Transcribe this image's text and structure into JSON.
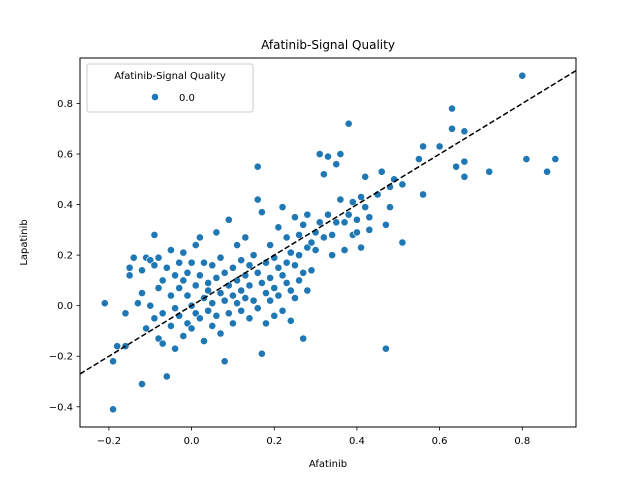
{
  "chart_data": {
    "type": "scatter",
    "title": "Afatinib-Signal Quality",
    "xlabel": "Afatinib",
    "ylabel": "Lapatinib",
    "xlim": [
      -0.27,
      0.93
    ],
    "ylim": [
      -0.48,
      0.98
    ],
    "xticks": [
      -0.2,
      0.0,
      0.2,
      0.4,
      0.6,
      0.8
    ],
    "yticks": [
      -0.4,
      -0.2,
      0.0,
      0.2,
      0.4,
      0.6,
      0.8
    ],
    "grid": false,
    "legend": {
      "title": "Afatinib-Signal Quality",
      "placement": "top-left",
      "entries": [
        "0.0"
      ]
    },
    "reference_line": {
      "style": "dashed",
      "color": "#000000",
      "slope": 1,
      "intercept": 0
    },
    "series": [
      {
        "name": "0.0",
        "color": "#1f77b4",
        "points": [
          [
            -0.21,
            0.01
          ],
          [
            -0.19,
            -0.41
          ],
          [
            -0.19,
            -0.22
          ],
          [
            -0.18,
            -0.16
          ],
          [
            -0.16,
            -0.16
          ],
          [
            -0.16,
            -0.03
          ],
          [
            -0.15,
            0.15
          ],
          [
            -0.15,
            0.12
          ],
          [
            -0.14,
            0.19
          ],
          [
            -0.13,
            0.01
          ],
          [
            -0.12,
            -0.31
          ],
          [
            -0.12,
            0.14
          ],
          [
            -0.12,
            0.05
          ],
          [
            -0.11,
            0.19
          ],
          [
            -0.11,
            -0.09
          ],
          [
            -0.1,
            0.18
          ],
          [
            -0.1,
            0.0
          ],
          [
            -0.09,
            0.28
          ],
          [
            -0.09,
            0.16
          ],
          [
            -0.09,
            -0.05
          ],
          [
            -0.08,
            0.19
          ],
          [
            -0.08,
            0.07
          ],
          [
            -0.08,
            -0.13
          ],
          [
            -0.07,
            -0.15
          ],
          [
            -0.07,
            0.1
          ],
          [
            -0.07,
            -0.03
          ],
          [
            -0.06,
            0.15
          ],
          [
            -0.06,
            -0.28
          ],
          [
            -0.05,
            0.04
          ],
          [
            -0.05,
            -0.08
          ],
          [
            -0.05,
            0.22
          ],
          [
            -0.04,
            0.12
          ],
          [
            -0.04,
            -0.01
          ],
          [
            -0.04,
            -0.17
          ],
          [
            -0.03,
            0.17
          ],
          [
            -0.03,
            0.07
          ],
          [
            -0.03,
            -0.04
          ],
          [
            -0.02,
            0.21
          ],
          [
            -0.02,
            0.1
          ],
          [
            -0.02,
            -0.12
          ],
          [
            -0.01,
            0.04
          ],
          [
            -0.01,
            -0.07
          ],
          [
            -0.01,
            0.13
          ],
          [
            0.0,
            0.17
          ],
          [
            0.0,
            0.0
          ],
          [
            0.0,
            -0.09
          ],
          [
            0.01,
            0.08
          ],
          [
            0.01,
            -0.03
          ],
          [
            0.01,
            0.24
          ],
          [
            0.02,
            0.12
          ],
          [
            0.02,
            -0.05
          ],
          [
            0.02,
            0.27
          ],
          [
            0.03,
            0.03
          ],
          [
            0.03,
            -0.14
          ],
          [
            0.03,
            0.17
          ],
          [
            0.04,
            0.09
          ],
          [
            0.04,
            -0.02
          ],
          [
            0.04,
            0.06
          ],
          [
            0.05,
            0.16
          ],
          [
            0.05,
            -0.08
          ],
          [
            0.05,
            0.01
          ],
          [
            0.06,
            0.29
          ],
          [
            0.06,
            0.11
          ],
          [
            0.06,
            -0.04
          ],
          [
            0.07,
            0.05
          ],
          [
            0.07,
            -0.11
          ],
          [
            0.07,
            0.19
          ],
          [
            0.08,
            0.13
          ],
          [
            0.08,
            -0.22
          ],
          [
            0.08,
            0.02
          ],
          [
            0.09,
            0.34
          ],
          [
            0.09,
            0.08
          ],
          [
            0.09,
            -0.03
          ],
          [
            0.1,
            0.15
          ],
          [
            0.1,
            0.04
          ],
          [
            0.1,
            -0.07
          ],
          [
            0.11,
            0.24
          ],
          [
            0.11,
            0.1
          ],
          [
            0.11,
            0.01
          ],
          [
            0.12,
            0.18
          ],
          [
            0.12,
            0.06
          ],
          [
            0.12,
            -0.02
          ],
          [
            0.13,
            0.27
          ],
          [
            0.13,
            0.12
          ],
          [
            0.13,
            0.03
          ],
          [
            0.14,
            0.16
          ],
          [
            0.14,
            -0.05
          ],
          [
            0.14,
            0.08
          ],
          [
            0.15,
            0.2
          ],
          [
            0.15,
            0.02
          ],
          [
            0.16,
            0.55
          ],
          [
            0.16,
            0.13
          ],
          [
            0.16,
            -0.01
          ],
          [
            0.16,
            0.42
          ],
          [
            0.17,
            -0.19
          ],
          [
            0.17,
            0.37
          ],
          [
            0.17,
            0.09
          ],
          [
            0.18,
            0.17
          ],
          [
            0.18,
            0.05
          ],
          [
            0.18,
            -0.07
          ],
          [
            0.19,
            0.24
          ],
          [
            0.19,
            0.11
          ],
          [
            0.19,
            0.02
          ],
          [
            0.2,
            0.19
          ],
          [
            0.2,
            0.07
          ],
          [
            0.2,
            -0.04
          ],
          [
            0.21,
            0.31
          ],
          [
            0.21,
            0.15
          ],
          [
            0.21,
            0.04
          ],
          [
            0.22,
            0.39
          ],
          [
            0.22,
            0.12
          ],
          [
            0.22,
            -0.02
          ],
          [
            0.23,
            0.27
          ],
          [
            0.23,
            0.17
          ],
          [
            0.23,
            0.09
          ],
          [
            0.24,
            0.21
          ],
          [
            0.24,
            0.06
          ],
          [
            0.24,
            -0.06
          ],
          [
            0.25,
            0.35
          ],
          [
            0.25,
            0.16
          ],
          [
            0.25,
            0.03
          ],
          [
            0.26,
            0.28
          ],
          [
            0.26,
            0.1
          ],
          [
            0.26,
            0.2
          ],
          [
            0.27,
            0.13
          ],
          [
            0.27,
            0.32
          ],
          [
            0.27,
            -0.13
          ],
          [
            0.28,
            0.23
          ],
          [
            0.28,
            0.06
          ],
          [
            0.28,
            0.36
          ],
          [
            0.29,
            0.25
          ],
          [
            0.29,
            0.14
          ],
          [
            0.3,
            0.29
          ],
          [
            0.3,
            0.22
          ],
          [
            0.31,
            0.6
          ],
          [
            0.31,
            0.33
          ],
          [
            0.32,
            0.52
          ],
          [
            0.32,
            0.27
          ],
          [
            0.33,
            0.59
          ],
          [
            0.33,
            0.36
          ],
          [
            0.34,
            0.28
          ],
          [
            0.34,
            0.2
          ],
          [
            0.35,
            0.56
          ],
          [
            0.35,
            0.33
          ],
          [
            0.36,
            0.6
          ],
          [
            0.36,
            0.42
          ],
          [
            0.37,
            0.33
          ],
          [
            0.37,
            0.22
          ],
          [
            0.38,
            0.72
          ],
          [
            0.38,
            0.36
          ],
          [
            0.39,
            0.41
          ],
          [
            0.39,
            0.28
          ],
          [
            0.4,
            0.34
          ],
          [
            0.4,
            0.29
          ],
          [
            0.41,
            0.43
          ],
          [
            0.41,
            0.23
          ],
          [
            0.42,
            0.39
          ],
          [
            0.42,
            0.51
          ],
          [
            0.43,
            0.35
          ],
          [
            0.43,
            0.3
          ],
          [
            0.45,
            0.44
          ],
          [
            0.46,
            0.53
          ],
          [
            0.47,
            0.32
          ],
          [
            0.47,
            -0.17
          ],
          [
            0.48,
            0.47
          ],
          [
            0.48,
            0.39
          ],
          [
            0.49,
            0.5
          ],
          [
            0.51,
            0.48
          ],
          [
            0.51,
            0.25
          ],
          [
            0.55,
            0.58
          ],
          [
            0.56,
            0.63
          ],
          [
            0.56,
            0.44
          ],
          [
            0.6,
            0.63
          ],
          [
            0.63,
            0.78
          ],
          [
            0.63,
            0.7
          ],
          [
            0.64,
            0.55
          ],
          [
            0.66,
            0.69
          ],
          [
            0.66,
            0.57
          ],
          [
            0.66,
            0.51
          ],
          [
            0.72,
            0.53
          ],
          [
            0.8,
            0.91
          ],
          [
            0.81,
            0.58
          ],
          [
            0.86,
            0.53
          ],
          [
            0.88,
            0.58
          ]
        ]
      }
    ]
  }
}
